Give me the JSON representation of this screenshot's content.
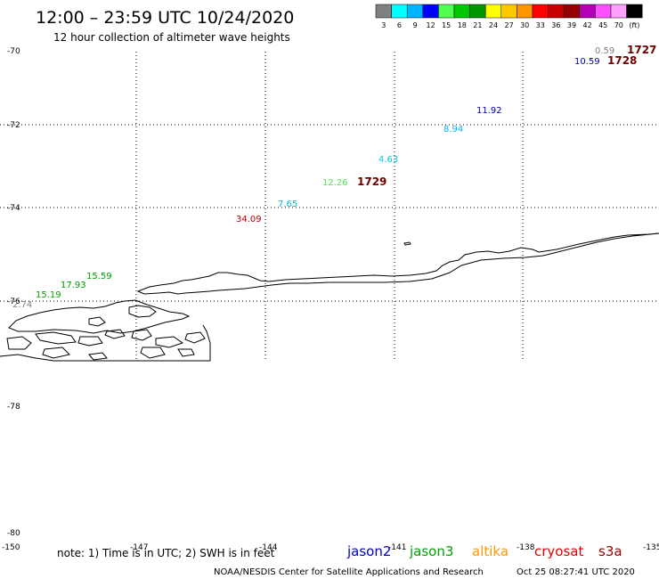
{
  "header": {
    "title": "12:00 – 23:59 UTC 10/24/2020",
    "subtitle": "12 hour collection of altimeter wave heights"
  },
  "scale": {
    "labels": [
      "3",
      "6",
      "9",
      "12",
      "15",
      "18",
      "21",
      "24",
      "27",
      "30",
      "33",
      "36",
      "39",
      "42",
      "45",
      "70",
      "(ft)"
    ],
    "colors": [
      "#808080",
      "#00ffff",
      "#00b4ff",
      "#0000ff",
      "#50ff50",
      "#00c800",
      "#009600",
      "#ffff00",
      "#ffc800",
      "#ff9600",
      "#ff0000",
      "#c80000",
      "#960000",
      "#b400b4",
      "#ff50ff",
      "#ffa0ff",
      "#000000"
    ]
  },
  "axes": {
    "lat_labels": [
      "-70",
      "-72",
      "-74",
      "-76",
      "-78",
      "-80"
    ],
    "lon_labels": [
      "-150",
      "-147",
      "-144",
      "-141",
      "-138",
      "-135"
    ]
  },
  "pass_labels": [
    "1727",
    "1728",
    "1729"
  ],
  "observations": [
    {
      "text": "0.59",
      "color": "#808080"
    },
    {
      "text": "10.59",
      "color": "#0000b4"
    },
    {
      "text": "11.92",
      "color": "#0000b4"
    },
    {
      "text": "8.94",
      "color": "#00b4ff"
    },
    {
      "text": "4.63",
      "color": "#00c8e6"
    },
    {
      "text": "12.26",
      "color": "#50e650"
    },
    {
      "text": "7.65",
      "color": "#00b4e6"
    },
    {
      "text": "34.09",
      "color": "#b40000"
    },
    {
      "text": "15.59",
      "color": "#00a000"
    },
    {
      "text": "17.93",
      "color": "#00a000"
    },
    {
      "text": "15.19",
      "color": "#00a000"
    },
    {
      "text": "2.74",
      "color": "#808080"
    }
  ],
  "footer": {
    "note": "note: 1) Time is in UTC; 2) SWH is in feet",
    "satellites": [
      {
        "name": "jason2",
        "color": "#0000c8"
      },
      {
        "name": "jason3",
        "color": "#00a000"
      },
      {
        "name": "altika",
        "color": "#ff9600"
      },
      {
        "name": "cryosat",
        "color": "#e60000"
      },
      {
        "name": "s3a",
        "color": "#960000"
      }
    ],
    "credit": "NOAA/NESDIS Center for Satellite Applications and Research",
    "timestamp": "Oct 25 08:27:41 UTC 2020"
  }
}
